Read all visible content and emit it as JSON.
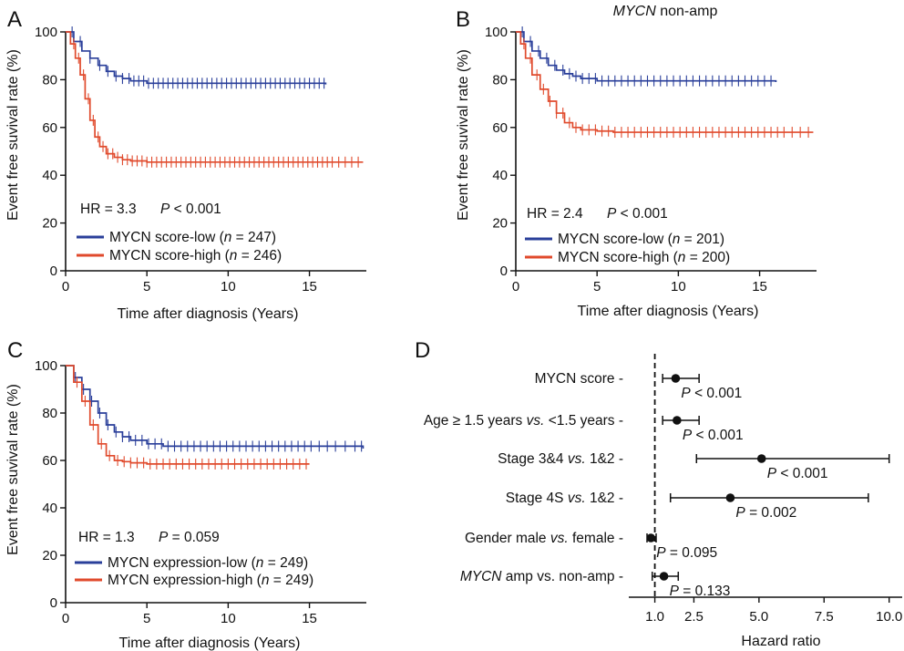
{
  "figure": {
    "colors": {
      "low": "#2a3f9a",
      "high": "#e04a2c",
      "axis": "#111111"
    }
  },
  "chart_data": [
    {
      "type": "line",
      "panel": "A",
      "title": "",
      "xlabel": "Time after diagnosis (Years)",
      "ylabel": "Event free suvival rate (%)",
      "xlim": [
        0,
        18.5
      ],
      "ylim": [
        0,
        100
      ],
      "xticks": [
        0,
        5,
        10,
        15
      ],
      "yticks": [
        0,
        20,
        40,
        60,
        80,
        100
      ],
      "annotation": {
        "hr": "HR = 3.3",
        "p_prefix": "P",
        "p_value": " < 0.001"
      },
      "series": [
        {
          "name": "MYCN score-low",
          "n": "247",
          "color": "#2a3f9a",
          "x": [
            0,
            0.5,
            1,
            1.5,
            2,
            2.5,
            3,
            3.5,
            4,
            5,
            16
          ],
          "y": [
            100,
            96,
            92,
            89,
            86,
            83.5,
            81.5,
            80.5,
            79.5,
            78.5,
            78
          ],
          "censor_x": [
            0.4,
            0.9,
            1.5,
            2.1,
            2.6,
            3.1,
            3.5,
            3.9,
            4.2,
            4.5,
            4.8,
            5.1,
            5.4,
            5.7,
            6,
            6.3,
            6.6,
            6.9,
            7.2,
            7.5,
            7.8,
            8.1,
            8.4,
            8.7,
            9,
            9.3,
            9.6,
            9.9,
            10.2,
            10.5,
            10.8,
            11.1,
            11.4,
            11.7,
            12,
            12.3,
            12.6,
            12.9,
            13.2,
            13.5,
            13.8,
            14.1,
            14.4,
            14.7,
            15,
            15.3,
            15.6,
            15.9
          ]
        },
        {
          "name": "MYCN score-high",
          "n": "246",
          "color": "#e04a2c",
          "x": [
            0,
            0.3,
            0.6,
            0.9,
            1.2,
            1.5,
            1.8,
            2.1,
            2.5,
            3,
            3.5,
            4,
            5,
            6,
            18.3
          ],
          "y": [
            100,
            95,
            89,
            82,
            72,
            63,
            56,
            52,
            49,
            47.5,
            46.5,
            46,
            45.5,
            45.5,
            45.5
          ],
          "censor_x": [
            0.5,
            0.8,
            1.1,
            1.4,
            1.7,
            2,
            2.3,
            2.6,
            2.9,
            3.2,
            3.5,
            3.8,
            4.1,
            4.4,
            4.7,
            5,
            5.3,
            5.6,
            5.9,
            6.2,
            6.5,
            6.8,
            7.1,
            7.4,
            7.7,
            8,
            8.3,
            8.6,
            8.9,
            9.2,
            9.5,
            9.8,
            10.1,
            10.4,
            10.7,
            11,
            11.3,
            11.6,
            11.9,
            12.2,
            12.5,
            12.8,
            13.1,
            13.4,
            13.7,
            14,
            14.3,
            14.6,
            14.9,
            15.2,
            15.5,
            15.8,
            16.1,
            16.4,
            16.8,
            17.2,
            17.6,
            18
          ]
        }
      ]
    },
    {
      "type": "line",
      "panel": "B",
      "title": "MYCN",
      "title_suffix": " non-amp",
      "xlabel": "Time after diagnosis (Years)",
      "ylabel": "Event free suvival rate (%)",
      "xlim": [
        0,
        18.5
      ],
      "ylim": [
        0,
        100
      ],
      "xticks": [
        0,
        5,
        10,
        15
      ],
      "yticks": [
        0,
        20,
        40,
        60,
        80,
        100
      ],
      "annotation": {
        "hr": "HR = 2.4",
        "p_prefix": "P",
        "p_value": " < 0.001"
      },
      "series": [
        {
          "name": "MYCN score-low",
          "n": "201",
          "color": "#2a3f9a",
          "x": [
            0,
            0.5,
            1,
            1.5,
            2,
            2.5,
            3,
            3.5,
            4,
            5,
            16
          ],
          "y": [
            100,
            96,
            92,
            89,
            86,
            84,
            82.5,
            81.5,
            80.5,
            79.5,
            79
          ],
          "censor_x": [
            0.4,
            0.9,
            1.4,
            1.9,
            2.4,
            2.9,
            3.3,
            3.7,
            4.1,
            4.5,
            4.9,
            5.3,
            5.7,
            6.1,
            6.5,
            6.9,
            7.3,
            7.7,
            8.1,
            8.5,
            8.9,
            9.3,
            9.7,
            10.1,
            10.5,
            10.9,
            11.3,
            11.7,
            12.1,
            12.5,
            12.9,
            13.3,
            13.7,
            14.1,
            14.5,
            14.9,
            15.3,
            15.7
          ]
        },
        {
          "name": "MYCN score-high",
          "n": "200",
          "color": "#e04a2c",
          "x": [
            0,
            0.3,
            0.6,
            1,
            1.5,
            2,
            2.5,
            3,
            3.5,
            4,
            5,
            6,
            18.3
          ],
          "y": [
            100,
            95,
            89,
            82,
            76,
            71,
            66,
            62,
            60,
            59,
            58.5,
            58,
            58
          ],
          "censor_x": [
            0.5,
            0.9,
            1.3,
            1.7,
            2.1,
            2.5,
            2.9,
            3.3,
            3.7,
            4.1,
            4.5,
            4.9,
            5.3,
            5.7,
            6.1,
            6.5,
            6.9,
            7.3,
            7.7,
            8.1,
            8.5,
            8.9,
            9.3,
            9.7,
            10.1,
            10.5,
            10.9,
            11.3,
            11.7,
            12.1,
            12.5,
            12.9,
            13.3,
            13.7,
            14.1,
            14.5,
            14.9,
            15.3,
            15.7,
            16.1,
            16.5,
            17,
            17.5,
            18
          ]
        }
      ]
    },
    {
      "type": "line",
      "panel": "C",
      "title": "",
      "xlabel": "Time after diagnosis (Years)",
      "ylabel": "Event free suvival rate (%)",
      "xlim": [
        0,
        18.5
      ],
      "ylim": [
        0,
        100
      ],
      "xticks": [
        0,
        5,
        10,
        15
      ],
      "yticks": [
        0,
        20,
        40,
        60,
        80,
        100
      ],
      "annotation": {
        "hr": "HR = 1.3",
        "p_prefix": "P",
        "p_value": " = 0.059"
      },
      "series": [
        {
          "name": "MYCN expression-low",
          "n": "249",
          "color": "#2a3f9a",
          "x": [
            0,
            0.5,
            1,
            1.5,
            2,
            2.5,
            3,
            3.5,
            4,
            5,
            6,
            18.3
          ],
          "y": [
            100,
            95,
            90,
            85,
            80,
            75,
            72,
            70,
            68.5,
            67,
            66,
            65
          ],
          "censor_x": [
            0.6,
            1.1,
            1.6,
            2.1,
            2.6,
            3.1,
            3.5,
            3.9,
            4.3,
            4.7,
            5.1,
            5.5,
            5.9,
            6.3,
            6.7,
            7.1,
            7.5,
            7.9,
            8.3,
            8.7,
            9.1,
            9.5,
            9.9,
            10.3,
            10.7,
            11.1,
            11.5,
            11.9,
            12.3,
            12.7,
            13.1,
            13.5,
            13.9,
            14.3,
            14.7,
            15.1,
            15.6,
            16.1,
            16.6,
            17.2,
            17.8,
            18.2
          ]
        },
        {
          "name": "MYCN expression-high",
          "n": "249",
          "color": "#e04a2c",
          "x": [
            0,
            0.5,
            1,
            1.5,
            2,
            2.5,
            3,
            3.5,
            4,
            5,
            6,
            15
          ],
          "y": [
            100,
            93,
            85,
            75,
            67,
            62,
            60,
            59.5,
            59,
            58.5,
            58.5,
            58.5
          ],
          "censor_x": [
            0.7,
            1.2,
            1.7,
            2.2,
            2.7,
            3.2,
            3.6,
            4,
            4.4,
            4.8,
            5.2,
            5.6,
            6,
            6.4,
            6.8,
            7.2,
            7.6,
            8,
            8.4,
            8.8,
            9.2,
            9.6,
            10,
            10.4,
            10.8,
            11.2,
            11.6,
            12,
            12.4,
            12.8,
            13.2,
            13.6,
            14,
            14.4,
            14.8
          ]
        }
      ]
    },
    {
      "type": "scatter",
      "panel": "D",
      "title": "",
      "xlabel": "Hazard ratio",
      "xlim": [
        0,
        10.5
      ],
      "xticks": [
        "1.0",
        "2.5",
        "5.0",
        "7.5",
        "10.0"
      ],
      "xtick_values": [
        1,
        2.5,
        5,
        7.5,
        10
      ],
      "reference_line": 1.0,
      "rows": [
        {
          "label": "MYCN score -",
          "hr": 1.8,
          "ci": [
            1.3,
            2.7
          ],
          "p_prefix": "P",
          "p_value": " < 0.001"
        },
        {
          "label_pre": "Age ≥ 1.5 years ",
          "label_em": "vs.",
          "label_post": " <1.5 years -",
          "hr": 1.85,
          "ci": [
            1.3,
            2.7
          ],
          "p_prefix": "P",
          "p_value": " < 0.001"
        },
        {
          "label_pre": "Stage 3&4 ",
          "label_em": "vs.",
          "label_post": "  1&2 -",
          "hr": 5.1,
          "ci": [
            2.6,
            10.0
          ],
          "p_prefix": "P",
          "p_value": " < 0.001"
        },
        {
          "label_pre": "Stage 4S ",
          "label_em": "vs.",
          "label_post": "  1&2 -",
          "hr": 3.9,
          "ci": [
            1.6,
            9.2
          ],
          "p_prefix": "P",
          "p_value": " = 0.002"
        },
        {
          "label_pre": "Gender male ",
          "label_em": "vs.",
          "label_post": " female -",
          "hr": 0.85,
          "ci": [
            0.7,
            1.05
          ],
          "p_prefix": "P",
          "p_value": " = 0.095"
        },
        {
          "label_em_first": "MYCN",
          "label_post": " amp vs. non-amp -",
          "hr": 1.35,
          "ci": [
            0.9,
            1.9
          ],
          "p_prefix": "P",
          "p_value": " = 0.133"
        }
      ]
    }
  ]
}
